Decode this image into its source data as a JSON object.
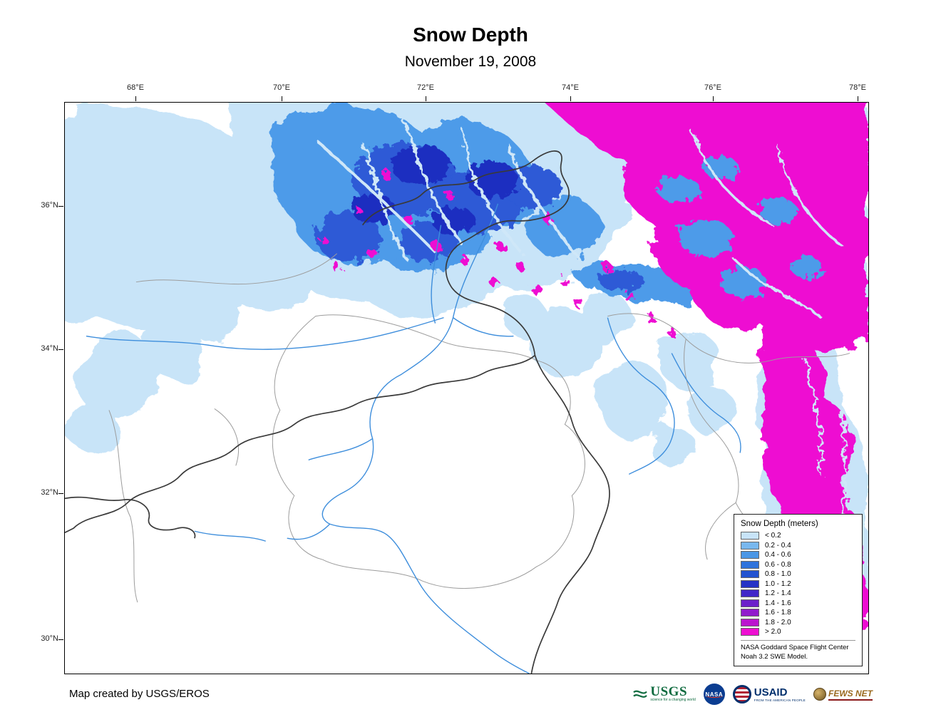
{
  "header": {
    "title": "Snow Depth",
    "date": "November 19, 2008"
  },
  "map": {
    "lon_ticks": [
      {
        "label": "68°E"
      },
      {
        "label": "70°E"
      },
      {
        "label": "72°E"
      },
      {
        "label": "74°E"
      },
      {
        "label": "76°E"
      },
      {
        "label": "78°E"
      }
    ],
    "lat_ticks": [
      {
        "label": "36°N"
      },
      {
        "label": "34°N"
      },
      {
        "label": "32°N"
      },
      {
        "label": "30°N"
      }
    ]
  },
  "legend": {
    "title": "Snow Depth (meters)",
    "entries": [
      {
        "label": "< 0.2",
        "color": "#c8e4f8"
      },
      {
        "label": "0.2 - 0.4",
        "color": "#79b8ee"
      },
      {
        "label": "0.4 - 0.6",
        "color": "#4a97e6"
      },
      {
        "label": "0.6 - 0.8",
        "color": "#2f73dc"
      },
      {
        "label": "0.8 - 1.0",
        "color": "#2453d0"
      },
      {
        "label": "1.0 - 1.2",
        "color": "#2533c6"
      },
      {
        "label": "1.2 - 1.4",
        "color": "#4127c8"
      },
      {
        "label": "1.4 - 1.6",
        "color": "#6b20ca"
      },
      {
        "label": "1.6 - 1.8",
        "color": "#911bcc"
      },
      {
        "label": "1.8 - 2.0",
        "color": "#bb15cf"
      },
      {
        "label": "> 2.0",
        "color": "#ee0fd2"
      }
    ],
    "source_line1": "NASA Goddard Space Flight Center",
    "source_line2": "Noah 3.2 SWE Model."
  },
  "footer": {
    "credit": "Map created by USGS/EROS",
    "logos": [
      {
        "name": "USGS",
        "tagline": "science for a changing world"
      },
      {
        "name": "NASA"
      },
      {
        "name": "USAID",
        "tagline": "FROM THE AMERICAN PEOPLE"
      },
      {
        "name": "FEWS NET"
      }
    ]
  }
}
